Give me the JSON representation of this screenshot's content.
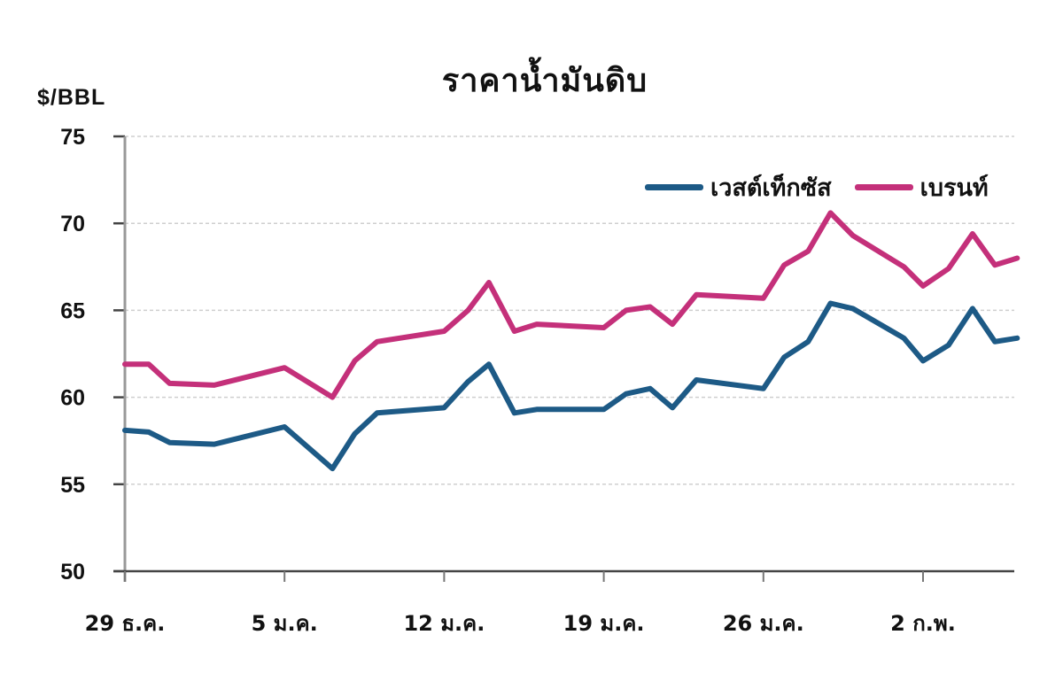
{
  "chart_data": {
    "type": "line",
    "title": "ราคาน้ำมันดิบ",
    "ylabel": "$/BBL",
    "xlabel": "",
    "ylim": [
      50,
      75
    ],
    "yticks": [
      50,
      55,
      60,
      65,
      70,
      75
    ],
    "grid": true,
    "legend_position": "top-right",
    "x_tick_labels": [
      "29 ธ.ค.",
      "5 ม.ค.",
      "12 ม.ค.",
      "19 ม.ค.",
      "26 ม.ค.",
      "2 ก.พ."
    ],
    "x_tick_positions": [
      0,
      5,
      10,
      15,
      20,
      25
    ],
    "x": [
      0,
      0.75,
      1.4,
      2.8,
      5.0,
      6.5,
      7.2,
      7.9,
      10.0,
      10.75,
      11.4,
      12.2,
      12.9,
      15.0,
      15.7,
      16.45,
      17.15,
      17.9,
      20.0,
      20.65,
      21.4,
      22.1,
      22.8,
      24.4,
      25.0,
      25.8,
      26.55,
      27.25,
      27.95
    ],
    "series": [
      {
        "name": "เวสต์เท็กซัส",
        "color": "#1d5a86",
        "values": [
          58.1,
          58.0,
          57.4,
          57.3,
          58.3,
          55.9,
          57.9,
          59.1,
          59.4,
          60.9,
          61.9,
          59.1,
          59.3,
          59.3,
          60.2,
          60.5,
          59.4,
          61.0,
          60.5,
          62.3,
          63.2,
          65.4,
          65.1,
          63.4,
          62.1,
          63.0,
          65.1,
          63.2,
          63.4
        ]
      },
      {
        "name": "เบรนท์",
        "color": "#c4307a",
        "values": [
          61.9,
          61.9,
          60.8,
          60.7,
          61.7,
          60.0,
          62.1,
          63.2,
          63.8,
          65.0,
          66.6,
          63.8,
          64.2,
          64.0,
          65.0,
          65.2,
          64.2,
          65.9,
          65.7,
          67.6,
          68.4,
          70.6,
          69.3,
          67.5,
          66.4,
          67.4,
          69.4,
          67.6,
          68.0
        ]
      }
    ]
  },
  "header": {
    "title": "ราคาน้ำมันดิบ",
    "unit": "$/BBL"
  },
  "legend": {
    "items": [
      {
        "label": "เวสต์เท็กซัส",
        "color": "#1d5a86"
      },
      {
        "label": "เบรนท์",
        "color": "#c4307a"
      }
    ]
  }
}
